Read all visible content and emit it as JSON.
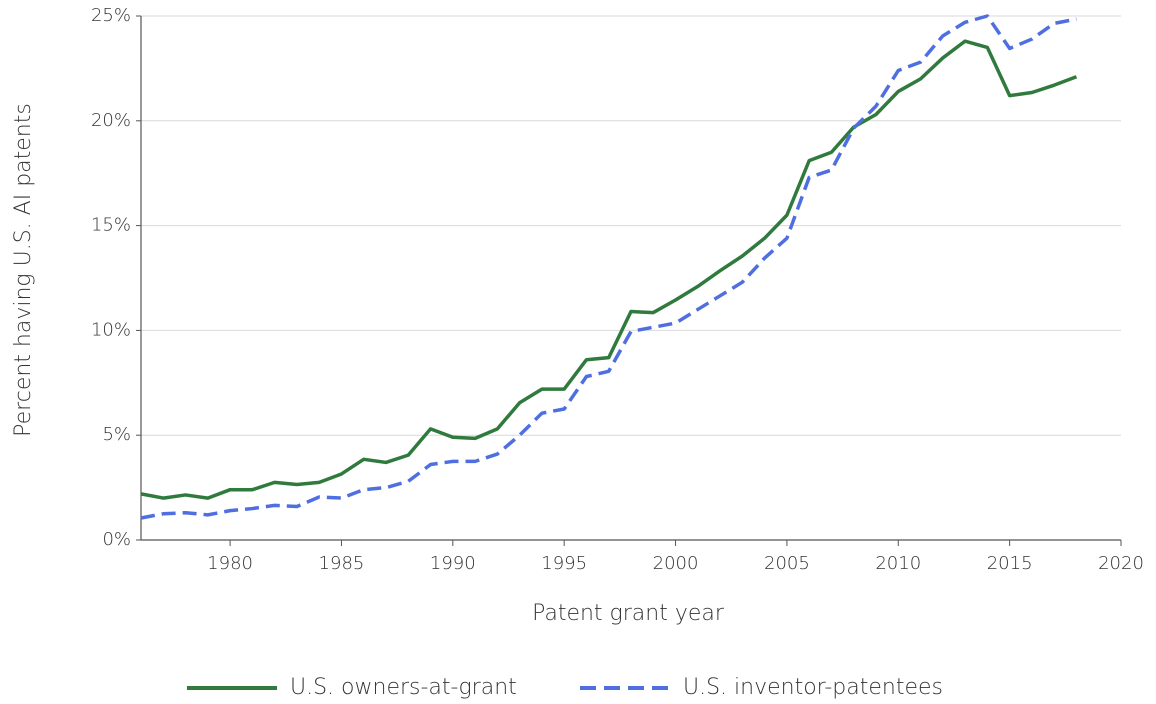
{
  "chart_data": {
    "type": "line",
    "xlabel": "Patent grant year",
    "ylabel": "Percent having U.S. AI patents",
    "x": [
      1976,
      1977,
      1978,
      1979,
      1980,
      1981,
      1982,
      1983,
      1984,
      1985,
      1986,
      1987,
      1988,
      1989,
      1990,
      1991,
      1992,
      1993,
      1994,
      1995,
      1996,
      1997,
      1998,
      1999,
      2000,
      2001,
      2002,
      2003,
      2004,
      2005,
      2006,
      2007,
      2008,
      2009,
      2010,
      2011,
      2012,
      2013,
      2014,
      2015,
      2016,
      2017,
      2018
    ],
    "series": [
      {
        "name": "U.S. owners-at-grant",
        "color": "#2f7a3c",
        "dash": false,
        "values": [
          2.2,
          2.0,
          2.15,
          2.0,
          2.4,
          2.4,
          2.75,
          2.65,
          2.75,
          3.15,
          3.85,
          3.7,
          4.05,
          5.3,
          4.9,
          4.85,
          5.3,
          6.55,
          7.2,
          7.2,
          8.6,
          8.7,
          10.9,
          10.85,
          11.45,
          12.1,
          12.85,
          13.55,
          14.4,
          15.5,
          18.1,
          18.5,
          19.7,
          20.3,
          21.4,
          22.0,
          23.0,
          23.8,
          23.5,
          21.2,
          21.35,
          21.7,
          22.1
        ]
      },
      {
        "name": "U.S. inventor-patentees",
        "color": "#4f6fe0",
        "dash": true,
        "values": [
          1.05,
          1.25,
          1.3,
          1.2,
          1.4,
          1.5,
          1.65,
          1.6,
          2.05,
          2.0,
          2.4,
          2.5,
          2.8,
          3.6,
          3.75,
          3.75,
          4.1,
          5.0,
          6.05,
          6.25,
          7.8,
          8.05,
          9.95,
          10.15,
          10.35,
          11.0,
          11.65,
          12.3,
          13.45,
          14.4,
          17.3,
          17.65,
          19.65,
          20.7,
          22.4,
          22.8,
          24.05,
          24.7,
          25.0,
          23.45,
          23.9,
          24.65,
          24.85
        ]
      }
    ],
    "xlim": [
      1976,
      2020
    ],
    "xticks": [
      1980,
      1985,
      1990,
      1995,
      2000,
      2005,
      2010,
      2015,
      2020
    ],
    "ylim": [
      0,
      25
    ],
    "yticks": [
      {
        "value": 0,
        "label": "0%"
      },
      {
        "value": 5,
        "label": "5%"
      },
      {
        "value": 10,
        "label": "10%"
      },
      {
        "value": 15,
        "label": "15%"
      },
      {
        "value": 20,
        "label": "20%"
      },
      {
        "value": 25,
        "label": "25%"
      }
    ],
    "grid": true,
    "legend": "bottom"
  }
}
